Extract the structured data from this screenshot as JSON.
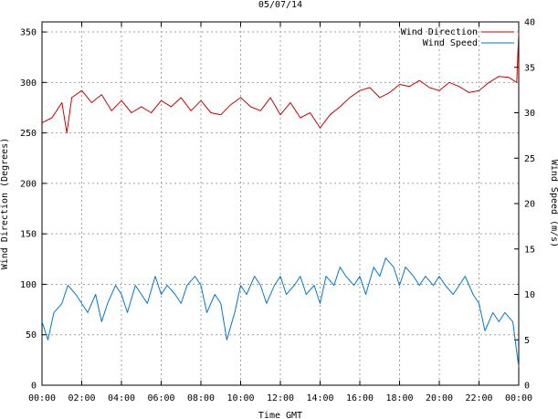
{
  "chart_data": {
    "type": "line",
    "title": "05/07/14",
    "xlabel": "Time GMT",
    "ylabel_left": "Wind Direction (Degrees)",
    "ylabel_right": "Wind Speed (m/s)",
    "x_tick_labels": [
      "00:00",
      "02:00",
      "04:00",
      "06:00",
      "08:00",
      "10:00",
      "12:00",
      "14:00",
      "16:00",
      "18:00",
      "20:00",
      "22:00",
      "00:00"
    ],
    "xlim_hours": [
      0,
      24
    ],
    "ylim_left": [
      0,
      360
    ],
    "yticks_left": [
      0,
      50,
      100,
      150,
      200,
      250,
      300,
      350
    ],
    "ylim_right": [
      0,
      40
    ],
    "yticks_right": [
      0,
      5,
      10,
      15,
      20,
      25,
      30,
      35,
      40
    ],
    "grid": true,
    "legend_position": "top-right",
    "series": [
      {
        "name": "Wind Direction",
        "axis": "left",
        "color": "#cc0000",
        "x_hours": [
          0,
          0.5,
          1,
          1.25,
          1.5,
          2,
          2.5,
          3,
          3.5,
          4,
          4.5,
          5,
          5.5,
          6,
          6.5,
          7,
          7.5,
          8,
          8.5,
          9,
          9.5,
          10,
          10.5,
          11,
          11.5,
          12,
          12.5,
          13,
          13.5,
          14,
          14.5,
          15,
          15.5,
          16,
          16.5,
          17,
          17.5,
          18,
          18.5,
          19,
          19.5,
          20,
          20.5,
          21,
          21.5,
          22,
          22.5,
          23,
          23.5,
          23.9,
          24
        ],
        "values": [
          260,
          265,
          280,
          250,
          285,
          292,
          280,
          288,
          272,
          282,
          270,
          276,
          270,
          282,
          276,
          285,
          272,
          282,
          270,
          268,
          278,
          285,
          276,
          272,
          285,
          268,
          280,
          265,
          270,
          255,
          268,
          276,
          285,
          292,
          295,
          285,
          290,
          298,
          296,
          302,
          295,
          292,
          300,
          296,
          290,
          292,
          300,
          306,
          305,
          300,
          350
        ]
      },
      {
        "name": "Wind Speed",
        "axis": "right",
        "color": "#0077cc",
        "x_hours": [
          0,
          0.3,
          0.6,
          1,
          1.3,
          1.7,
          2,
          2.3,
          2.7,
          3,
          3.3,
          3.7,
          4,
          4.3,
          4.7,
          5,
          5.3,
          5.7,
          6,
          6.3,
          6.7,
          7,
          7.3,
          7.7,
          8,
          8.3,
          8.7,
          9,
          9.3,
          9.7,
          10,
          10.3,
          10.7,
          11,
          11.3,
          11.7,
          12,
          12.3,
          12.7,
          13,
          13.3,
          13.7,
          14,
          14.3,
          14.7,
          15,
          15.3,
          15.7,
          16,
          16.3,
          16.7,
          17,
          17.3,
          17.7,
          18,
          18.3,
          18.7,
          19,
          19.3,
          19.7,
          20,
          20.3,
          20.7,
          21,
          21.3,
          21.7,
          22,
          22.3,
          22.7,
          23,
          23.3,
          23.7,
          24
        ],
        "values": [
          7,
          5,
          8,
          9,
          11,
          10,
          9,
          8,
          10,
          7,
          9,
          11,
          10,
          8,
          11,
          10,
          9,
          12,
          10,
          11,
          10,
          9,
          11,
          12,
          11,
          8,
          10,
          9,
          5,
          8,
          11,
          10,
          12,
          11,
          9,
          11,
          12,
          10,
          11,
          12,
          10,
          11,
          9,
          12,
          11,
          13,
          12,
          11,
          12,
          10,
          13,
          12,
          14,
          13,
          11,
          13,
          12,
          11,
          12,
          11,
          12,
          11,
          10,
          11,
          12,
          10,
          9,
          6,
          8,
          7,
          8,
          7,
          2
        ]
      }
    ]
  }
}
